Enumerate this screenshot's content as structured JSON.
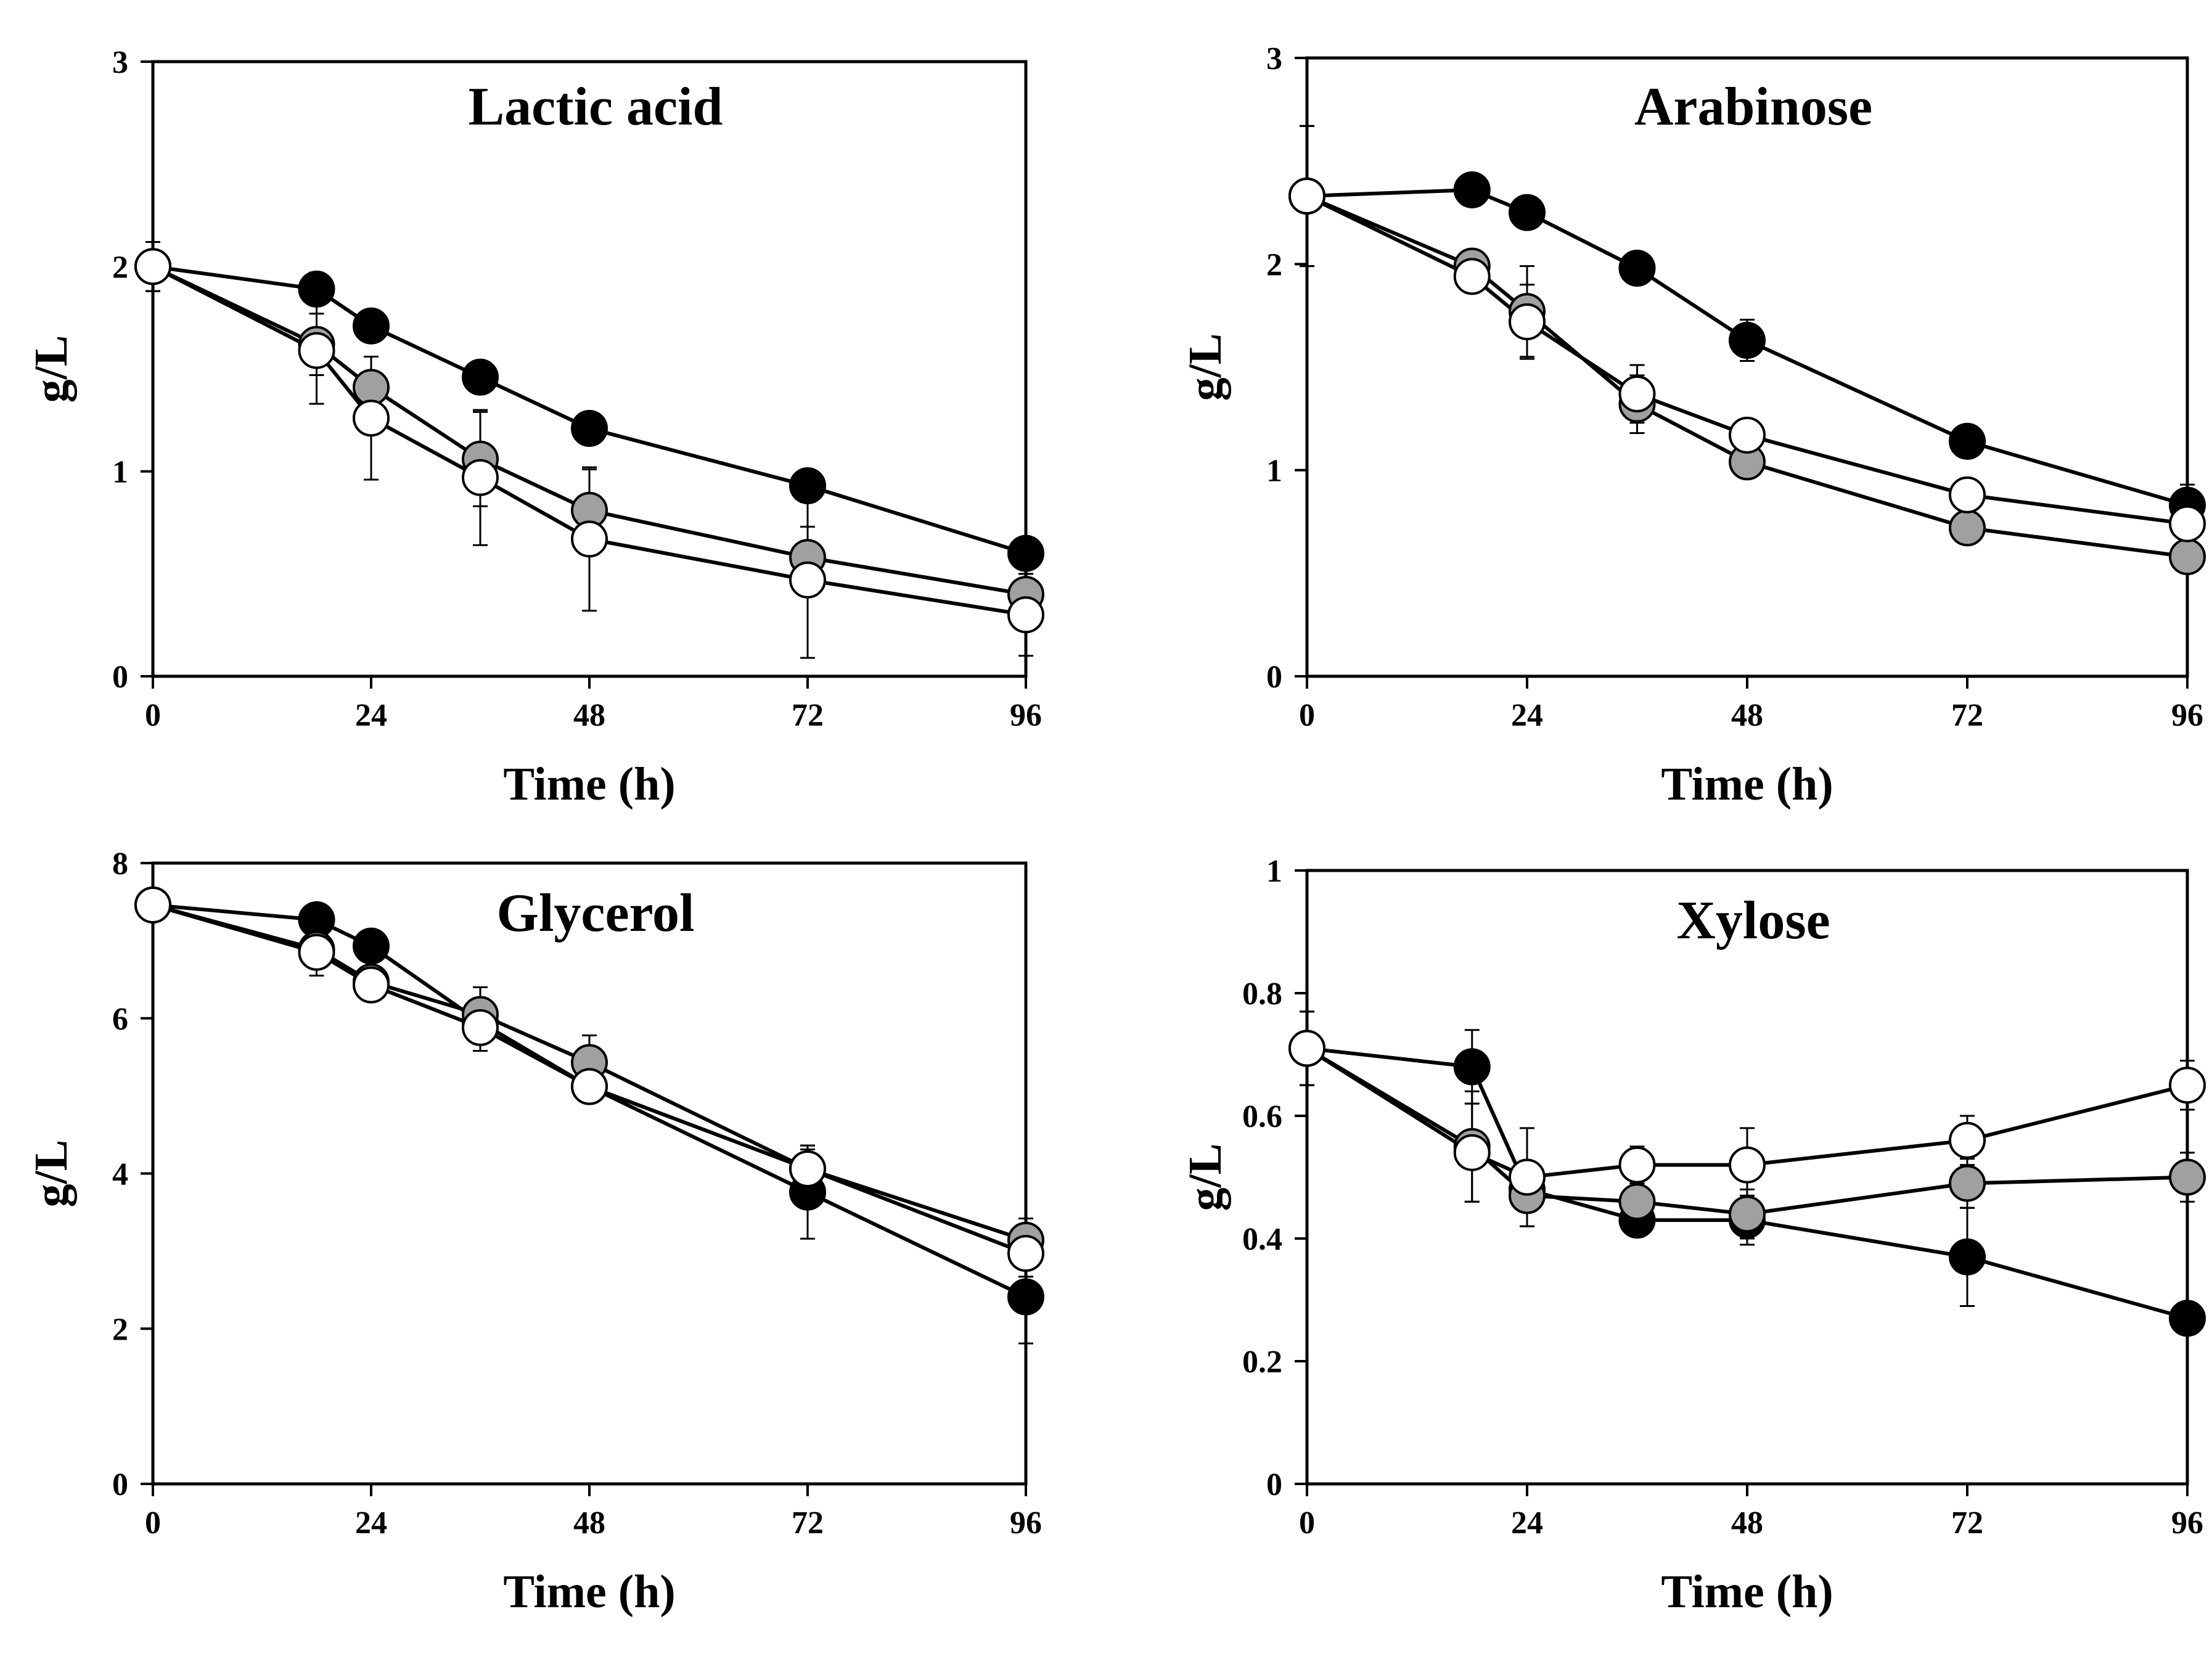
{
  "chart_data": [
    {
      "type": "line",
      "title": "Lactic acid",
      "xlabel": "Time (h)",
      "ylabel": "g/L",
      "xlim": [
        0,
        96
      ],
      "ylim": [
        0,
        3
      ],
      "xticks": [
        "0",
        "24",
        "48",
        "72",
        "96"
      ],
      "yticks": [
        "0",
        "1",
        "2",
        "3"
      ],
      "series": [
        {
          "name": "black",
          "color": "#000000",
          "x": [
            0,
            18,
            24,
            36,
            48,
            72,
            96
          ],
          "values": [
            2.0,
            1.89,
            1.71,
            1.46,
            1.21,
            0.93,
            0.6
          ],
          "errors": [
            0.12,
            0.08,
            0.05,
            0.04,
            0.05,
            0.05,
            0.05
          ]
        },
        {
          "name": "grey",
          "color": "#a0a0a0",
          "x": [
            0,
            18,
            24,
            36,
            48,
            72,
            96
          ],
          "values": [
            2.0,
            1.62,
            1.41,
            1.06,
            0.81,
            0.58,
            0.4
          ],
          "errors": [
            0.12,
            0.15,
            0.15,
            0.23,
            0.2,
            0.15,
            0.1
          ]
        },
        {
          "name": "white",
          "color": "#ffffff",
          "x": [
            0,
            18,
            24,
            36,
            48,
            72,
            96
          ],
          "values": [
            2.0,
            1.59,
            1.26,
            0.97,
            0.67,
            0.47,
            0.3
          ],
          "errors": [
            0.12,
            0.26,
            0.3,
            0.33,
            0.35,
            0.38,
            0.2
          ]
        }
      ]
    },
    {
      "type": "line",
      "title": "Arabinose",
      "xlabel": "Time (h)",
      "ylabel": "g/L",
      "xlim": [
        0,
        96
      ],
      "ylim": [
        0,
        3
      ],
      "xticks": [
        "0",
        "24",
        "48",
        "72",
        "96"
      ],
      "yticks": [
        "0",
        "1",
        "2",
        "3"
      ],
      "series": [
        {
          "name": "black",
          "color": "#000000",
          "x": [
            0,
            18,
            24,
            36,
            48,
            72,
            96
          ],
          "values": [
            2.33,
            2.36,
            2.25,
            1.98,
            1.63,
            1.14,
            0.83
          ],
          "errors": [
            0.34,
            0.04,
            0.04,
            0.05,
            0.1,
            0.05,
            0.1
          ]
        },
        {
          "name": "grey",
          "color": "#a0a0a0",
          "x": [
            0,
            18,
            24,
            36,
            48,
            72,
            96
          ],
          "values": [
            2.33,
            1.99,
            1.77,
            1.32,
            1.04,
            0.72,
            0.58
          ],
          "errors": [
            0.34,
            0.06,
            0.22,
            0.14,
            0.05,
            0.05,
            0.05
          ]
        },
        {
          "name": "white",
          "color": "#ffffff",
          "x": [
            0,
            18,
            24,
            36,
            48,
            72,
            96
          ],
          "values": [
            2.33,
            1.94,
            1.72,
            1.37,
            1.17,
            0.88,
            0.74
          ],
          "errors": [
            0.34,
            0.05,
            0.18,
            0.14,
            0.05,
            0.05,
            0.05
          ]
        }
      ]
    },
    {
      "type": "line",
      "title": "Glycerol",
      "xlabel": "Time (h)",
      "ylabel": "g/L",
      "xlim": [
        0,
        96
      ],
      "ylim": [
        0,
        8
      ],
      "xticks": [
        "0",
        "24",
        "48",
        "72",
        "96"
      ],
      "yticks": [
        "0",
        "2",
        "4",
        "6",
        "8"
      ],
      "series": [
        {
          "name": "black",
          "color": "#000000",
          "x": [
            0,
            18,
            24,
            36,
            48,
            72,
            96
          ],
          "values": [
            7.46,
            7.27,
            6.93,
            5.95,
            5.12,
            3.76,
            2.41
          ],
          "errors": [
            0.1,
            0.1,
            0.1,
            0.2,
            0.1,
            0.6,
            0.6
          ]
        },
        {
          "name": "grey",
          "color": "#a0a0a0",
          "x": [
            0,
            18,
            24,
            36,
            48,
            72,
            96
          ],
          "values": [
            7.46,
            6.89,
            6.47,
            6.05,
            5.43,
            4.06,
            3.14
          ],
          "errors": [
            0.1,
            0.2,
            0.15,
            0.35,
            0.35,
            0.3,
            0.28
          ]
        },
        {
          "name": "white",
          "color": "#ffffff",
          "x": [
            0,
            18,
            24,
            36,
            48,
            72,
            96
          ],
          "values": [
            7.46,
            6.85,
            6.43,
            5.88,
            5.12,
            4.06,
            2.97
          ],
          "errors": [
            0.1,
            0.3,
            0.1,
            0.3,
            0.1,
            0.25,
            0.3
          ]
        }
      ]
    },
    {
      "type": "line",
      "title": "Xylose",
      "xlabel": "Time (h)",
      "ylabel": "g/L",
      "xlim": [
        0,
        96
      ],
      "ylim": [
        0,
        1
      ],
      "xticks": [
        "0",
        "24",
        "48",
        "72",
        "96"
      ],
      "yticks": [
        "0",
        "0.2",
        "0.4",
        "0.6",
        "0.8",
        "1"
      ],
      "series": [
        {
          "name": "black",
          "color": "#000000",
          "x": [
            0,
            18,
            24,
            36,
            48,
            72,
            96
          ],
          "values": [
            0.71,
            0.68,
            0.48,
            0.43,
            0.43,
            0.37,
            0.27
          ],
          "errors": [
            0.06,
            0.06,
            0.02,
            0.02,
            0.04,
            0.08,
            0.02
          ]
        },
        {
          "name": "grey",
          "color": "#a0a0a0",
          "x": [
            0,
            18,
            24,
            36,
            48,
            72,
            96
          ],
          "values": [
            0.71,
            0.55,
            0.47,
            0.46,
            0.44,
            0.49,
            0.5
          ],
          "errors": [
            0.06,
            0.09,
            0.05,
            0.03,
            0.04,
            0.04,
            0.04
          ]
        },
        {
          "name": "white",
          "color": "#ffffff",
          "x": [
            0,
            18,
            24,
            36,
            48,
            72,
            96
          ],
          "values": [
            0.71,
            0.54,
            0.5,
            0.52,
            0.52,
            0.56,
            0.65
          ],
          "errors": [
            0.06,
            0.08,
            0.08,
            0.03,
            0.06,
            0.04,
            0.04
          ]
        }
      ]
    }
  ]
}
